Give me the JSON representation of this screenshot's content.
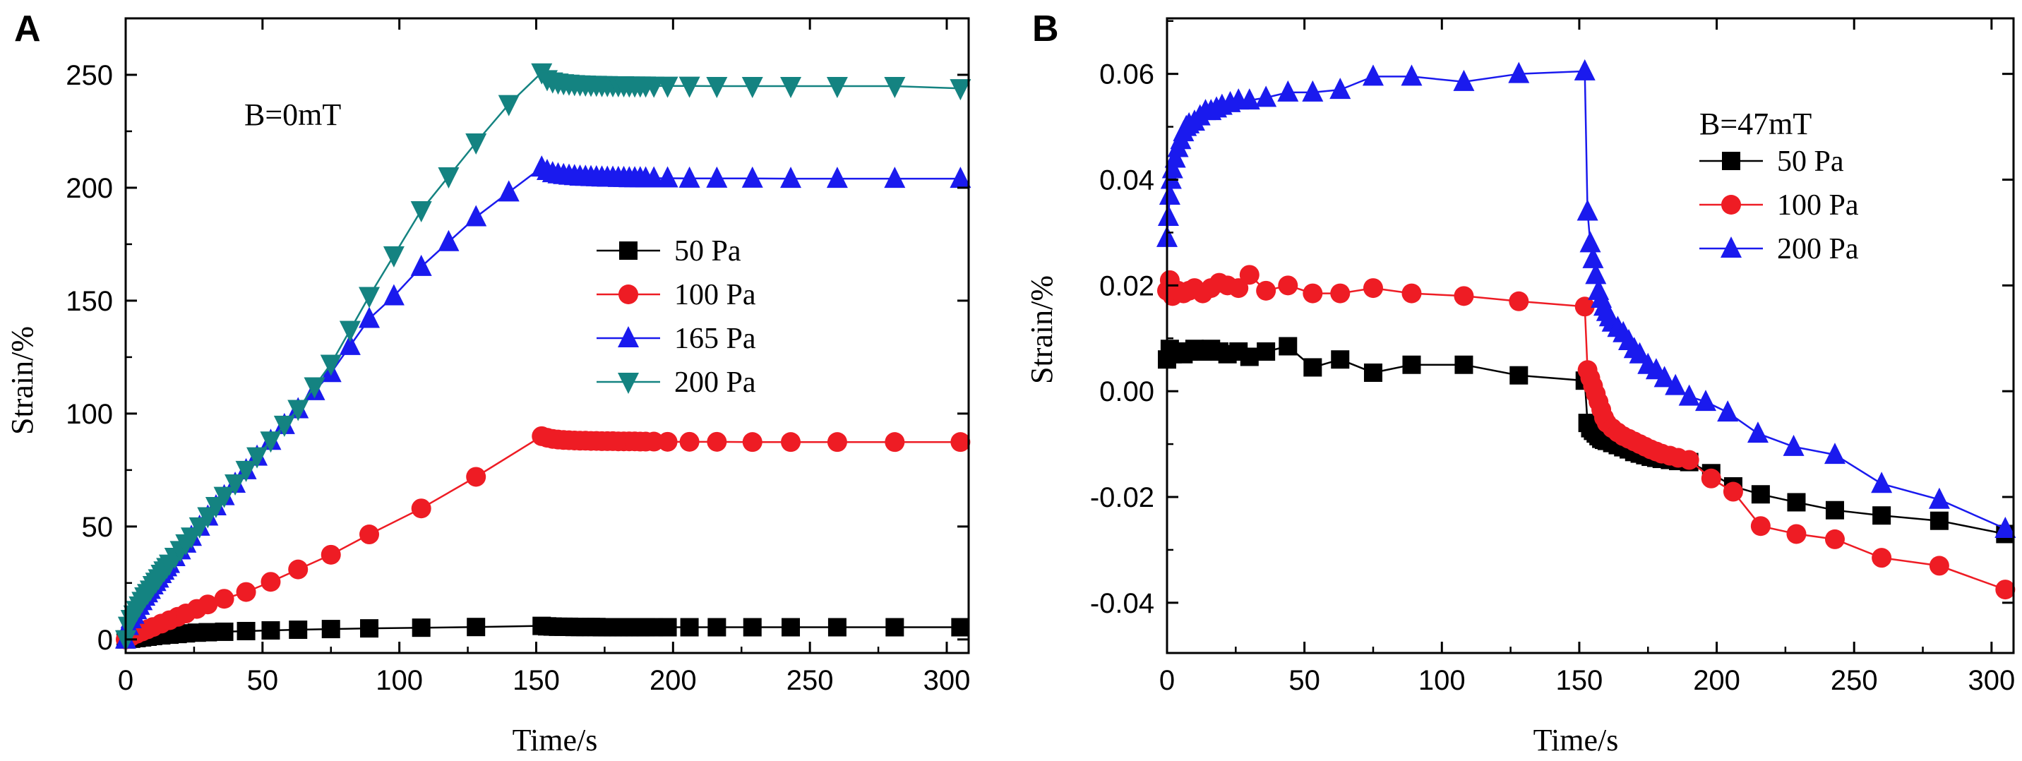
{
  "figure": {
    "panels": [
      "A",
      "B"
    ]
  },
  "chart_data": [
    {
      "type": "line",
      "panel_label": "A",
      "annotation": "B=0mT",
      "xlabel": "Time/s",
      "ylabel": "Strain/%",
      "xlim": [
        0,
        308
      ],
      "ylim": [
        -6,
        275
      ],
      "xticks": [
        0,
        50,
        100,
        150,
        200,
        250,
        300
      ],
      "yticks": [
        0,
        50,
        100,
        150,
        200,
        250
      ],
      "legend_position": "center-right",
      "series": [
        {
          "name": "50 Pa",
          "color": "#000000",
          "marker": "square",
          "x": [
            0,
            2,
            4,
            6,
            8,
            10,
            13,
            16,
            19,
            22,
            26,
            30,
            36,
            44,
            53,
            63,
            75,
            89,
            108,
            128,
            152,
            154,
            156,
            158,
            160,
            162,
            164,
            166,
            168,
            170,
            172,
            174,
            176,
            178,
            180,
            182,
            184,
            186,
            188,
            190,
            193,
            198,
            206,
            216,
            229,
            243,
            260,
            281,
            305
          ],
          "y": [
            0,
            0.3,
            0.6,
            0.9,
            1.2,
            1.5,
            1.8,
            2.1,
            2.4,
            2.7,
            3,
            3.2,
            3.4,
            3.7,
            4,
            4.3,
            4.6,
            4.9,
            5.2,
            5.5,
            6,
            5.8,
            5.7,
            5.6,
            5.6,
            5.6,
            5.5,
            5.5,
            5.5,
            5.5,
            5.5,
            5.4,
            5.4,
            5.4,
            5.4,
            5.4,
            5.4,
            5.4,
            5.4,
            5.4,
            5.4,
            5.4,
            5.4,
            5.4,
            5.4,
            5.4,
            5.4,
            5.4,
            5.4
          ]
        },
        {
          "name": "100 Pa",
          "color": "#ee1c24",
          "marker": "circle",
          "x": [
            0,
            2,
            4,
            6,
            8,
            10,
            13,
            16,
            19,
            22,
            26,
            30,
            36,
            44,
            53,
            63,
            75,
            89,
            108,
            128,
            152,
            154,
            156,
            158,
            160,
            162,
            164,
            166,
            168,
            170,
            172,
            174,
            176,
            178,
            180,
            182,
            184,
            186,
            188,
            190,
            193,
            198,
            206,
            216,
            229,
            243,
            260,
            281,
            305
          ],
          "y": [
            0,
            1.3,
            2.5,
            3.5,
            4.5,
            5.5,
            7,
            8.5,
            10,
            11.5,
            13.5,
            15.5,
            18,
            21,
            25.5,
            31,
            37.5,
            46.5,
            58,
            72,
            90,
            89.3,
            88.8,
            88.5,
            88.3,
            88.2,
            88.1,
            88,
            88,
            87.9,
            87.9,
            87.8,
            87.8,
            87.8,
            87.7,
            87.7,
            87.7,
            87.7,
            87.6,
            87.6,
            87.6,
            87.5,
            87.5,
            87.5,
            87.4,
            87.4,
            87.4,
            87.4,
            87.4
          ]
        },
        {
          "name": "165 Pa",
          "color": "#1a1aee",
          "marker": "triangle-up",
          "x": [
            0,
            1,
            2,
            3,
            4,
            5,
            6,
            7,
            8,
            9,
            10,
            11,
            12,
            13,
            14,
            15,
            16,
            18,
            20,
            22,
            24,
            27,
            30,
            33,
            36,
            40,
            44,
            48,
            53,
            58,
            63,
            69,
            75,
            82,
            89,
            98,
            108,
            118,
            128,
            140,
            152,
            154,
            156,
            158,
            160,
            162,
            164,
            166,
            168,
            170,
            172,
            174,
            176,
            178,
            180,
            182,
            184,
            186,
            188,
            190,
            193,
            198,
            206,
            216,
            229,
            243,
            260,
            281,
            305
          ],
          "y": [
            0,
            6,
            9,
            11,
            13,
            15,
            17,
            19,
            20.5,
            22,
            24,
            25.5,
            27,
            29,
            30.5,
            32,
            33.5,
            36.5,
            39.5,
            42.5,
            45.5,
            50,
            54.5,
            59,
            63.5,
            69,
            75,
            81,
            88,
            95,
            102,
            110,
            118,
            130,
            142,
            152,
            165,
            176,
            187,
            198,
            209,
            207.5,
            206.5,
            206,
            205.7,
            205.4,
            205.2,
            205,
            204.9,
            204.8,
            204.7,
            204.6,
            204.5,
            204.5,
            204.4,
            204.4,
            204.3,
            204.3,
            204.3,
            204.2,
            204.2,
            204.2,
            204.1,
            204.1,
            204.1,
            204,
            204,
            204,
            204
          ]
        },
        {
          "name": "200 Pa",
          "color": "#148381",
          "marker": "triangle-down",
          "x": [
            0,
            1,
            2,
            3,
            4,
            5,
            6,
            7,
            8,
            9,
            10,
            11,
            12,
            13,
            14,
            15,
            16,
            18,
            20,
            22,
            24,
            27,
            30,
            33,
            36,
            40,
            44,
            48,
            53,
            58,
            63,
            69,
            75,
            82,
            89,
            98,
            108,
            118,
            128,
            140,
            152,
            154,
            156,
            158,
            160,
            162,
            164,
            166,
            168,
            170,
            172,
            174,
            176,
            178,
            180,
            182,
            184,
            186,
            188,
            190,
            193,
            198,
            206,
            216,
            229,
            243,
            260,
            281,
            305
          ],
          "y": [
            0,
            6,
            9,
            11,
            13,
            15,
            17,
            19,
            20.5,
            22,
            24,
            25.5,
            27,
            29,
            30.5,
            32,
            33.5,
            36.5,
            39.5,
            42.5,
            45.5,
            50,
            54.5,
            59,
            63.5,
            69,
            75,
            81,
            88,
            95,
            102,
            112,
            122,
            137,
            152,
            170,
            190,
            205,
            220,
            237,
            251,
            248,
            247,
            246.5,
            246.2,
            246,
            245.8,
            245.7,
            245.6,
            245.5,
            245.5,
            245.4,
            245.4,
            245.3,
            245.3,
            245.3,
            245.2,
            245.2,
            245.2,
            245.2,
            245.1,
            245.1,
            245.1,
            245,
            245,
            245,
            245,
            245,
            244
          ]
        }
      ]
    },
    {
      "type": "line",
      "panel_label": "B",
      "annotation": "B=47mT",
      "xlabel": "Time/s",
      "ylabel": "Strain/%",
      "xlim": [
        0,
        308
      ],
      "ylim": [
        -0.0495,
        0.0705
      ],
      "xticks": [
        0,
        50,
        100,
        150,
        200,
        250,
        300
      ],
      "yticks": [
        -0.04,
        -0.02,
        0.0,
        0.02,
        0.04,
        0.06
      ],
      "ytick_labels": [
        "-0.04",
        "-0.02",
        "0.00",
        "0.02",
        "0.04",
        "0.06"
      ],
      "legend_position": "top-right",
      "series": [
        {
          "name": "50 Pa",
          "color": "#000000",
          "marker": "square",
          "x": [
            0,
            1,
            2,
            4,
            6,
            8,
            10,
            13,
            16,
            19,
            22,
            26,
            30,
            36,
            44,
            53,
            63,
            75,
            89,
            108,
            128,
            152,
            153,
            154,
            155,
            156,
            157,
            158,
            159,
            160,
            162,
            164,
            166,
            168,
            170,
            172,
            174,
            176,
            178,
            180,
            183,
            186,
            190,
            198,
            206,
            216,
            229,
            243,
            260,
            281,
            305
          ],
          "y": [
            0.006,
            0.008,
            0.007,
            0.0075,
            0.007,
            0.0075,
            0.008,
            0.0075,
            0.008,
            0.0075,
            0.007,
            0.0075,
            0.0065,
            0.0075,
            0.0085,
            0.0045,
            0.006,
            0.0035,
            0.005,
            0.005,
            0.003,
            0.002,
            -0.006,
            -0.007,
            -0.0075,
            -0.008,
            -0.0085,
            -0.009,
            -0.0092,
            -0.0094,
            -0.0098,
            -0.0102,
            -0.0106,
            -0.011,
            -0.0115,
            -0.0118,
            -0.0121,
            -0.0124,
            -0.0126,
            -0.0128,
            -0.013,
            -0.0132,
            -0.0134,
            -0.0155,
            -0.018,
            -0.0195,
            -0.021,
            -0.0225,
            -0.0235,
            -0.0245,
            -0.027
          ]
        },
        {
          "name": "100 Pa",
          "color": "#ee1c24",
          "marker": "circle",
          "x": [
            0,
            1,
            2,
            4,
            6,
            8,
            10,
            13,
            16,
            19,
            22,
            26,
            30,
            36,
            44,
            53,
            63,
            75,
            89,
            108,
            128,
            152,
            153,
            154,
            155,
            156,
            157,
            158,
            159,
            160,
            162,
            164,
            166,
            168,
            170,
            172,
            174,
            176,
            178,
            180,
            183,
            186,
            190,
            198,
            206,
            216,
            229,
            243,
            260,
            281,
            305
          ],
          "y": [
            0.019,
            0.021,
            0.018,
            0.019,
            0.0185,
            0.019,
            0.0195,
            0.0185,
            0.0195,
            0.0205,
            0.02,
            0.0195,
            0.022,
            0.019,
            0.02,
            0.0185,
            0.0185,
            0.0195,
            0.0185,
            0.018,
            0.017,
            0.016,
            0.004,
            0.0025,
            0.001,
            -0.0005,
            -0.002,
            -0.0035,
            -0.005,
            -0.006,
            -0.007,
            -0.0078,
            -0.0085,
            -0.009,
            -0.0095,
            -0.01,
            -0.0105,
            -0.011,
            -0.0114,
            -0.0118,
            -0.0122,
            -0.0126,
            -0.013,
            -0.0165,
            -0.019,
            -0.0255,
            -0.027,
            -0.028,
            -0.0315,
            -0.033,
            -0.0375
          ]
        },
        {
          "name": "200 Pa",
          "color": "#1a1aee",
          "marker": "triangle-up",
          "x": [
            0,
            0.5,
            1,
            1.5,
            2,
            3,
            4,
            5,
            6,
            7,
            8,
            10,
            12,
            14,
            16,
            18,
            20,
            23,
            26,
            30,
            36,
            44,
            53,
            63,
            75,
            89,
            108,
            128,
            152,
            153,
            154,
            155,
            156,
            157,
            158,
            159,
            160,
            161,
            162,
            164,
            166,
            168,
            170,
            172,
            175,
            178,
            181,
            185,
            190,
            196,
            204,
            215,
            228,
            243,
            260,
            281,
            305
          ],
          "y": [
            0.029,
            0.033,
            0.037,
            0.04,
            0.042,
            0.044,
            0.046,
            0.0475,
            0.049,
            0.05,
            0.0505,
            0.051,
            0.052,
            0.053,
            0.053,
            0.0535,
            0.054,
            0.0545,
            0.055,
            0.055,
            0.0555,
            0.0565,
            0.0565,
            0.057,
            0.0595,
            0.0595,
            0.0585,
            0.06,
            0.0605,
            0.034,
            0.028,
            0.025,
            0.022,
            0.019,
            0.0175,
            0.016,
            0.015,
            0.014,
            0.013,
            0.012,
            0.011,
            0.0095,
            0.008,
            0.007,
            0.005,
            0.004,
            0.0025,
            0.001,
            -0.001,
            -0.002,
            -0.004,
            -0.008,
            -0.0105,
            -0.012,
            -0.0175,
            -0.0205,
            -0.026
          ]
        }
      ]
    }
  ]
}
